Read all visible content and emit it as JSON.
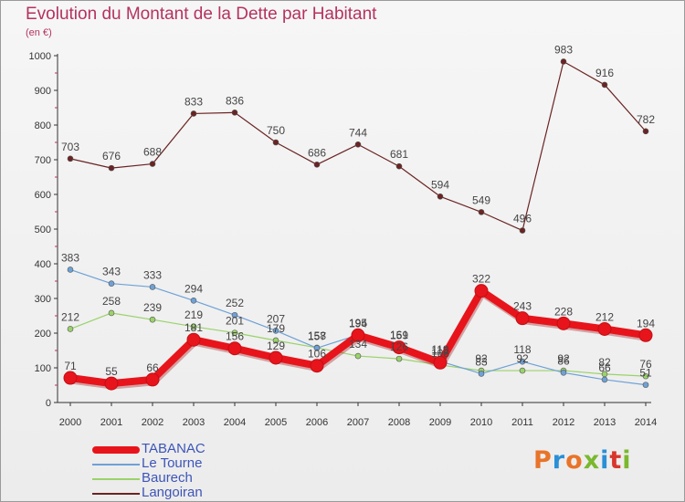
{
  "page": {
    "title": "Evolution du Montant de la Dette par Habitant",
    "unit": "(en €)"
  },
  "brand": {
    "name": "Proxiti",
    "colors": [
      "#e8742a",
      "#2a8fd6",
      "#e8742a",
      "#7ab82e",
      "#2a8fd6",
      "#d9362b",
      "#7ab82e"
    ]
  },
  "chart_data": {
    "type": "line",
    "title": "Evolution du Montant de la Dette par Habitant",
    "ylabel": "(en €)",
    "xlabel": "",
    "ylim": [
      0,
      1000
    ],
    "yticks": [
      0,
      100,
      200,
      300,
      400,
      500,
      600,
      700,
      800,
      900,
      1000
    ],
    "grid": false,
    "legend_position": "bottom-left",
    "x": [
      "2000",
      "2001",
      "2002",
      "2003",
      "2004",
      "2005",
      "2006",
      "2007",
      "2008",
      "2009",
      "2010",
      "2011",
      "2012",
      "2013",
      "2014"
    ],
    "series": [
      {
        "name": "TABANAC",
        "color": "#e8141b",
        "values": [
          71,
          55,
          66,
          181,
          156,
          129,
          106,
          194,
          159,
          115,
          322,
          243,
          228,
          212,
          194
        ],
        "labels": [
          "71",
          "55",
          "66",
          "181",
          "156",
          "129",
          "106",
          "194",
          "159",
          "115",
          "322",
          "243",
          "228",
          "212",
          "194"
        ]
      },
      {
        "name": "Le Tourne",
        "color": "#6ea1d6",
        "values": [
          383,
          343,
          333,
          294,
          252,
          207,
          157,
          195,
          161,
          119,
          83,
          118,
          86,
          66,
          51
        ],
        "labels": [
          "383",
          "343",
          "333",
          "294",
          "252",
          "207",
          "157",
          "195",
          "161",
          "119",
          "83",
          "118",
          "86",
          "66",
          "51"
        ]
      },
      {
        "name": "Baurech",
        "color": "#9ad26a",
        "values": [
          212,
          258,
          239,
          219,
          201,
          179,
          158,
          134,
          126,
          108,
          92,
          92,
          92,
          82,
          76
        ],
        "labels": [
          "212",
          "258",
          "239",
          "219",
          "201",
          "179",
          "158",
          "134",
          "126",
          "108",
          "92",
          "92",
          "92",
          "82",
          "76"
        ]
      },
      {
        "name": "Langoiran",
        "color": "#6b2323",
        "values": [
          703,
          676,
          688,
          833,
          836,
          750,
          686,
          744,
          681,
          594,
          549,
          496,
          983,
          916,
          782
        ],
        "labels": [
          "703",
          "676",
          "688",
          "833",
          "836",
          "750",
          "686",
          "744",
          "681",
          "594",
          "549",
          "496",
          "983",
          "916",
          "782"
        ]
      }
    ]
  }
}
